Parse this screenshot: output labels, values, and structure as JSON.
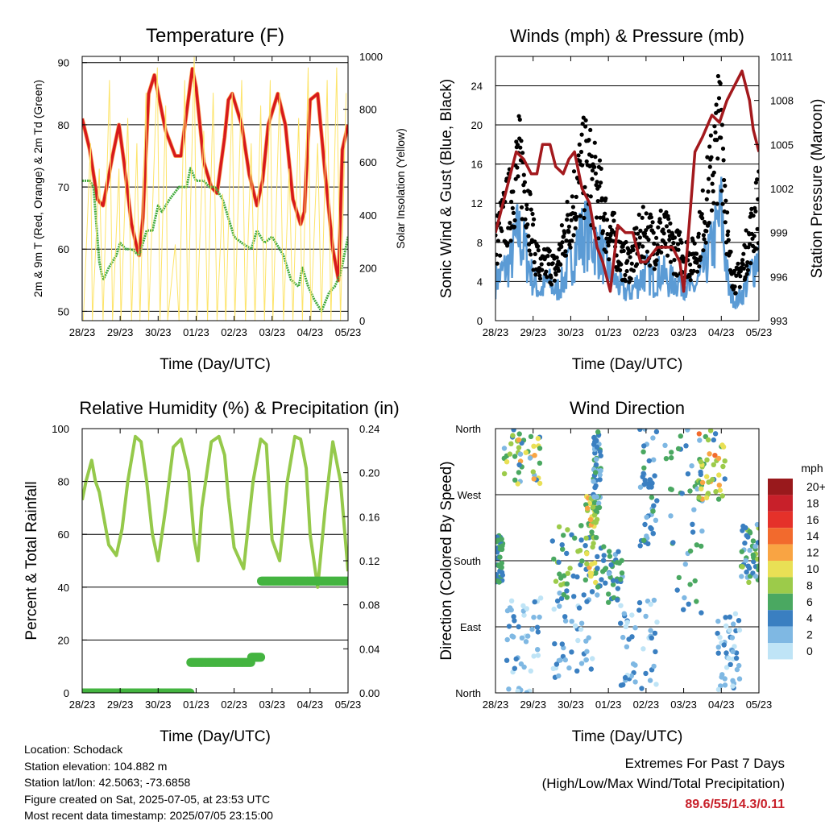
{
  "colors": {
    "temp2m": "#d7191c",
    "temp9m": "#fdae61",
    "dewpoint": "#41ab3c",
    "solar": "#fde46a",
    "gust": "#000000",
    "wind": "#5b9bd5",
    "pressure": "#a3191d",
    "rh": "#95c94b",
    "rain": "#44b440",
    "highlight": "#c8202a"
  },
  "chart_data": [
    {
      "id": "temperature",
      "type": "line",
      "title": "Temperature (F)",
      "xlabel": "Time (Day/UTC)",
      "ylabel": "2m & 9m T (Red, Orange) & 2m Td (Green)",
      "ylabel2": "Solar Insolation (Yellow)",
      "x_ticks": [
        "28/23",
        "29/23",
        "30/23",
        "01/23",
        "02/23",
        "03/23",
        "04/23",
        "05/23"
      ],
      "xlim": [
        0,
        7
      ],
      "ylim": [
        48.5,
        91
      ],
      "yticks": [
        50,
        60,
        70,
        80,
        90
      ],
      "hlines": [
        50,
        60,
        70,
        80,
        90
      ],
      "ylim2": [
        0,
        1045
      ],
      "yticks2": [
        0,
        200,
        400,
        600,
        800,
        1000
      ],
      "series": [
        {
          "key": "temp2m",
          "x": [
            0,
            0.2,
            0.4,
            0.55,
            0.8,
            0.97,
            1.1,
            1.3,
            1.45,
            1.5,
            1.6,
            1.75,
            1.9,
            2.0,
            2.2,
            2.45,
            2.6,
            2.75,
            2.9,
            3.0,
            3.2,
            3.4,
            3.55,
            3.75,
            3.85,
            3.95,
            4.2,
            4.4,
            4.6,
            4.75,
            4.9,
            5.15,
            5.35,
            5.55,
            5.75,
            5.85,
            6.0,
            6.2,
            6.4,
            6.6,
            6.75,
            6.85,
            7.0
          ],
          "y": [
            81,
            76,
            68,
            67,
            75,
            80,
            74,
            64,
            60,
            59,
            65,
            85,
            88,
            85,
            79,
            75,
            75,
            82,
            89,
            86,
            74,
            70,
            69,
            78,
            84,
            85,
            80,
            72,
            67,
            71,
            80,
            85,
            80,
            68,
            64,
            66,
            84,
            85,
            72,
            60,
            55,
            76,
            80
          ]
        },
        {
          "key": "dewpoint",
          "x": [
            0,
            0.1,
            0.2,
            0.3,
            0.45,
            0.55,
            0.7,
            0.9,
            1.0,
            1.15,
            1.3,
            1.5,
            1.7,
            1.85,
            2.0,
            2.1,
            2.3,
            2.55,
            2.75,
            2.85,
            3.0,
            3.2,
            3.35,
            3.5,
            3.7,
            3.85,
            4.0,
            4.2,
            4.45,
            4.6,
            4.8,
            5.0,
            5.2,
            5.3,
            5.4,
            5.5,
            5.7,
            5.8,
            5.95,
            6.1,
            6.3,
            6.5,
            6.65,
            6.8,
            7.0
          ],
          "y": [
            71,
            71,
            71,
            70,
            58,
            55,
            57,
            59,
            61,
            60,
            60,
            59,
            63,
            63,
            67,
            66,
            68,
            70,
            70,
            73,
            71,
            71,
            70,
            70,
            68,
            65,
            62,
            61,
            60,
            63,
            61,
            62,
            60,
            59,
            57,
            55,
            54,
            57,
            54,
            52,
            50,
            53,
            54,
            56,
            62
          ]
        },
        {
          "key": "solar",
          "x": [
            0.03,
            0.22,
            0.27,
            0.45,
            0.55,
            0.72,
            0.8,
            0.97,
            1.02,
            1.2,
            1.3,
            1.44,
            1.52,
            1.68,
            1.75,
            1.98,
            2.05,
            2.2,
            2.25,
            2.45,
            2.55,
            2.7,
            2.78,
            2.95,
            3.02,
            3.2,
            3.3,
            3.45,
            3.55,
            3.7,
            3.78,
            3.95,
            4.02,
            4.2,
            4.3,
            4.45,
            4.55,
            4.7,
            4.8,
            4.95,
            5.02,
            5.2,
            5.3,
            5.45,
            5.55,
            5.7,
            5.8,
            5.95,
            6.02,
            6.2,
            6.3,
            6.45,
            6.55,
            6.7,
            6.8,
            6.95
          ],
          "y2": [
            0,
            700,
            0,
            600,
            0,
            950,
            0,
            600,
            0,
            800,
            0,
            700,
            0,
            900,
            0,
            1000,
            0,
            850,
            0,
            300,
            0,
            950,
            0,
            1050,
            0,
            750,
            0,
            900,
            0,
            500,
            0,
            900,
            0,
            950,
            0,
            700,
            0,
            850,
            0,
            950,
            0,
            900,
            0,
            600,
            0,
            800,
            0,
            1000,
            0,
            700,
            0,
            950,
            0,
            1000,
            0,
            900
          ]
        }
      ]
    },
    {
      "id": "winds",
      "type": "line",
      "title": "Winds (mph) & Pressure (mb)",
      "xlabel": "Time (Day/UTC)",
      "ylabel": "Sonic Wind & Gust (Blue, Black)",
      "ylabel2": "Station Pressure (Maroon)",
      "x_ticks": [
        "28/23",
        "29/23",
        "30/23",
        "01/23",
        "02/23",
        "03/23",
        "04/23",
        "05/23"
      ],
      "xlim": [
        0,
        7
      ],
      "ylim": [
        0,
        27
      ],
      "yticks": [
        0,
        4,
        8,
        12,
        16,
        20,
        24
      ],
      "hlines": [
        4,
        8,
        12,
        16,
        20,
        24
      ],
      "ylim2": [
        993,
        1011
      ],
      "yticks2": [
        993,
        996,
        999,
        1002,
        1005,
        1008,
        1011
      ],
      "series": [
        {
          "key": "wind",
          "x": [
            0,
            0.2,
            0.4,
            0.6,
            0.8,
            1.0,
            1.2,
            1.4,
            1.6,
            1.8,
            2.0,
            2.2,
            2.4,
            2.6,
            2.8,
            3.0,
            3.2,
            3.4,
            3.6,
            3.8,
            4.0,
            4.2,
            4.4,
            4.6,
            4.8,
            5.0,
            5.2,
            5.4,
            5.6,
            5.8,
            6.0,
            6.2,
            6.4,
            6.6,
            6.8,
            7.0
          ],
          "y": [
            4,
            5,
            6,
            9,
            7,
            4,
            3,
            4,
            3,
            4,
            6,
            8,
            9,
            8,
            7,
            5,
            4,
            3,
            3,
            4,
            5,
            4,
            5,
            4,
            4,
            4,
            3,
            4,
            6,
            8,
            11,
            3,
            2,
            3,
            5,
            7
          ]
        },
        {
          "key": "gust",
          "x": [
            0,
            0.2,
            0.4,
            0.6,
            0.8,
            1.0,
            1.2,
            1.4,
            1.6,
            1.8,
            2.0,
            2.2,
            2.4,
            2.6,
            2.8,
            3.0,
            3.2,
            3.4,
            3.6,
            3.8,
            4.0,
            4.2,
            4.4,
            4.6,
            4.8,
            5.0,
            5.2,
            5.4,
            5.6,
            5.8,
            6.0,
            6.2,
            6.4,
            6.6,
            6.8,
            7.0
          ],
          "y": [
            8,
            10,
            12,
            16,
            14,
            8,
            5,
            6,
            5,
            8,
            11,
            14,
            16,
            14,
            12,
            9,
            8,
            6,
            6,
            8,
            9,
            8,
            9,
            8,
            7,
            7,
            6,
            8,
            12,
            16,
            21,
            6,
            4,
            6,
            9,
            12
          ]
        },
        {
          "key": "pressure",
          "x": [
            0,
            0.3,
            0.55,
            0.75,
            0.95,
            1.1,
            1.25,
            1.45,
            1.6,
            1.8,
            1.95,
            2.1,
            2.3,
            2.5,
            2.7,
            2.85,
            2.95,
            3.05,
            3.25,
            3.45,
            3.65,
            3.85,
            4.0,
            4.3,
            4.5,
            4.7,
            4.9,
            5.0,
            5.1,
            5.3,
            5.5,
            5.75,
            5.95,
            6.15,
            6.35,
            6.55,
            6.75,
            6.85,
            7.0
          ],
          "y2": [
            999,
            1002,
            1004.5,
            1004,
            1003,
            1003,
            1005,
            1005,
            1003.5,
            1003,
            1004,
            1004.5,
            1002,
            1001,
            998,
            997,
            996,
            995,
            999.5,
            999,
            999,
            997,
            997,
            998,
            998,
            998,
            997,
            995,
            998,
            1004.5,
            1005.5,
            1007,
            1006.5,
            1008,
            1009,
            1010,
            1008,
            1006,
            1004.5
          ]
        }
      ]
    },
    {
      "id": "humidity",
      "type": "line",
      "title": "Relative Humidity (%) & Precipitation (in)",
      "xlabel": "Time (Day/UTC)",
      "ylabel": "Percent & Total Rainfall",
      "x_ticks": [
        "28/23",
        "29/23",
        "30/23",
        "01/23",
        "02/23",
        "03/23",
        "04/23",
        "05/23"
      ],
      "xlim": [
        0,
        7
      ],
      "ylim": [
        0,
        100
      ],
      "yticks": [
        0,
        20,
        40,
        60,
        80,
        100
      ],
      "hlines": [
        20,
        40,
        60,
        80
      ],
      "ylim2": [
        0,
        0.26
      ],
      "yticks2": [
        "0.00",
        "0.04",
        "0.08",
        "0.12",
        "0.16",
        "0.20",
        "0.24"
      ],
      "series": [
        {
          "key": "rh",
          "x": [
            0,
            0.1,
            0.25,
            0.35,
            0.45,
            0.55,
            0.7,
            0.9,
            1.05,
            1.2,
            1.4,
            1.55,
            1.7,
            1.85,
            2.0,
            2.2,
            2.4,
            2.6,
            2.8,
            2.95,
            3.05,
            3.15,
            3.4,
            3.6,
            3.75,
            3.85,
            4.0,
            4.25,
            4.5,
            4.7,
            4.85,
            5.0,
            5.2,
            5.4,
            5.6,
            5.75,
            5.9,
            6.0,
            6.2,
            6.4,
            6.6,
            6.8,
            7.0
          ],
          "y": [
            73,
            80,
            88,
            80,
            76,
            68,
            56,
            52,
            62,
            80,
            97,
            95,
            80,
            60,
            50,
            70,
            93,
            96,
            84,
            58,
            50,
            70,
            95,
            97,
            90,
            74,
            55,
            47,
            80,
            96,
            94,
            58,
            50,
            80,
            97,
            96,
            85,
            60,
            40,
            70,
            95,
            80,
            46
          ]
        },
        {
          "key": "rain",
          "type": "step",
          "x": [
            0,
            2.8,
            2.85,
            4.4,
            4.45,
            4.65,
            4.7,
            7.0
          ],
          "y2": [
            0,
            0,
            0.03,
            0.03,
            0.035,
            0.035,
            0.11,
            0.11
          ]
        }
      ]
    },
    {
      "id": "wind_direction",
      "type": "scatter",
      "title": "Wind Direction",
      "xlabel": "Time (Day/UTC)",
      "ylabel": "Direction (Colored By Speed)",
      "x_ticks": [
        "28/23",
        "29/23",
        "30/23",
        "01/23",
        "02/23",
        "03/23",
        "04/23",
        "05/23"
      ],
      "xlim": [
        0,
        7
      ],
      "ylim": [
        0,
        360
      ],
      "yticks": [
        "North",
        "East",
        "South",
        "West",
        "North"
      ],
      "hlines": [
        90,
        180,
        270
      ],
      "colorbar": {
        "label": "mph",
        "labels": [
          "20+",
          "18",
          "16",
          "14",
          "12",
          "10",
          "8",
          "6",
          "4",
          "2",
          "0"
        ],
        "colors": [
          "#99191c",
          "#c8202a",
          "#e5312a",
          "#f26a2d",
          "#f9a443",
          "#e9e055",
          "#9ccb4a",
          "#4aa861",
          "#3a7fc1",
          "#7fb8e3",
          "#bfe4f6"
        ]
      },
      "clusters": [
        {
          "x": [
            0.0,
            0.2
          ],
          "y": [
            150,
            215
          ],
          "speed": [
            3,
            7
          ]
        },
        {
          "x": [
            0.2,
            1.2
          ],
          "y": [
            280,
            360
          ],
          "speed": [
            2,
            12
          ]
        },
        {
          "x": [
            0.3,
            1.2
          ],
          "y": [
            0,
            130
          ],
          "speed": [
            0,
            4
          ]
        },
        {
          "x": [
            1.5,
            2.6
          ],
          "y": [
            20,
            140
          ],
          "speed": [
            0,
            5
          ]
        },
        {
          "x": [
            1.5,
            2.6
          ],
          "y": [
            130,
            230
          ],
          "speed": [
            3,
            9
          ]
        },
        {
          "x": [
            2.4,
            2.7
          ],
          "y": [
            150,
            270
          ],
          "speed": [
            6,
            12
          ]
        },
        {
          "x": [
            2.7,
            3.4
          ],
          "y": [
            120,
            200
          ],
          "speed": [
            2,
            7
          ]
        },
        {
          "x": [
            2.6,
            2.8
          ],
          "y": [
            250,
            360
          ],
          "speed": [
            2,
            6
          ]
        },
        {
          "x": [
            3.3,
            4.3
          ],
          "y": [
            0,
            130
          ],
          "speed": [
            0,
            5
          ]
        },
        {
          "x": [
            3.8,
            4.3
          ],
          "y": [
            200,
            360
          ],
          "speed": [
            2,
            6
          ]
        },
        {
          "x": [
            4.5,
            5.5
          ],
          "y": [
            100,
            360
          ],
          "speed": [
            1,
            7
          ]
        },
        {
          "x": [
            5.4,
            6.1
          ],
          "y": [
            260,
            360
          ],
          "speed": [
            3,
            14
          ]
        },
        {
          "x": [
            5.9,
            6.5
          ],
          "y": [
            0,
            110
          ],
          "speed": [
            0,
            4
          ]
        },
        {
          "x": [
            6.5,
            7.0
          ],
          "y": [
            150,
            230
          ],
          "speed": [
            2,
            8
          ]
        }
      ]
    }
  ],
  "info": {
    "location": "Location: Schodack",
    "elevation": "Station elevation: 104.882 m",
    "latlon": "Station lat/lon: 42.5063; -73.6858",
    "created": "Figure created on Sat, 2025-07-05, at 23:53 UTC",
    "recent": "Most recent data timestamp: 2025/07/05 23:15:00"
  },
  "extremes": {
    "title": "Extremes For Past 7 Days",
    "subtitle": "(High/Low/Max Wind/Total Precipitation)",
    "values": "89.6/55/14.3/0.11"
  }
}
